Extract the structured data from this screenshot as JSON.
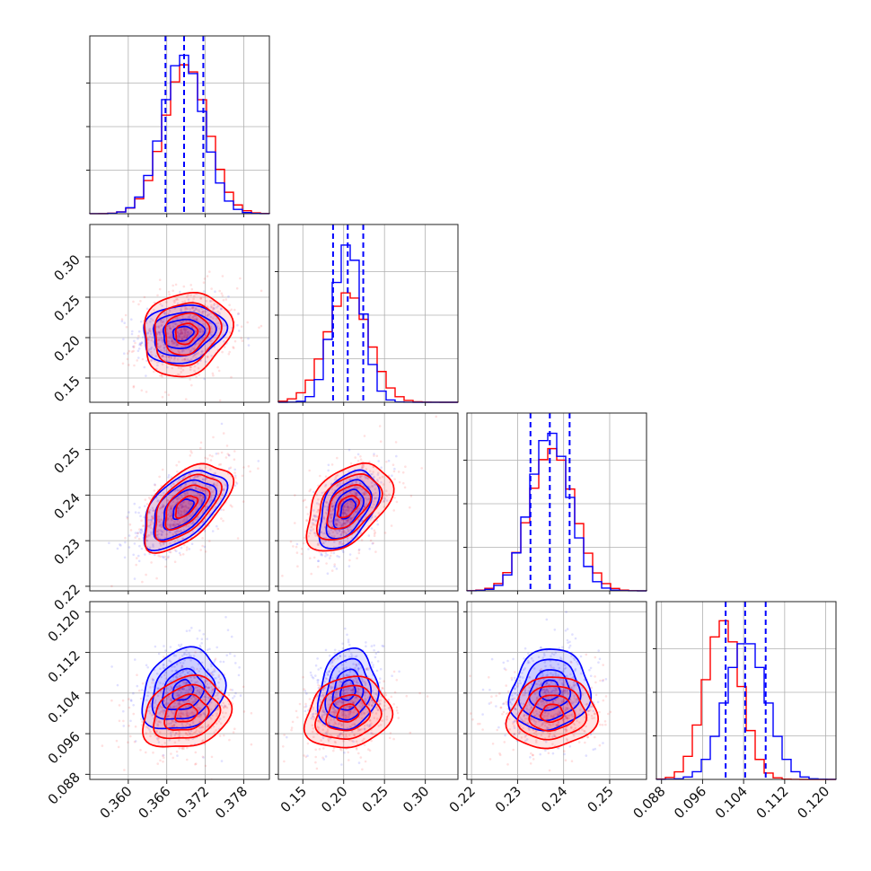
{
  "chart_data": {
    "type": "corner",
    "colors": {
      "series_a": "#0000ff",
      "series_b": "#ff0000"
    },
    "grid": true,
    "parameters": [
      {
        "range": [
          0.354,
          0.382
        ],
        "ticks": [
          "0.360",
          "0.366",
          "0.372",
          "0.378"
        ],
        "tick_values": [
          0.36,
          0.366,
          0.372,
          0.378
        ],
        "mean_a": 0.3685,
        "sd_a": 0.0032,
        "mean_b": 0.369,
        "sd_b": 0.0034,
        "quantiles_a": [
          0.3658,
          0.3687,
          0.3717
        ]
      },
      {
        "range": [
          0.12,
          0.34
        ],
        "ticks": [
          "0.15",
          "0.20",
          "0.25",
          "0.30"
        ],
        "tick_values": [
          0.15,
          0.2,
          0.25,
          0.3
        ],
        "mean_a": 0.205,
        "sd_a": 0.018,
        "mean_b": 0.205,
        "sd_b": 0.026,
        "quantiles_a": [
          0.187,
          0.205,
          0.224
        ]
      },
      {
        "range": [
          0.219,
          0.258
        ],
        "ticks": [
          "0.22",
          "0.23",
          "0.24",
          "0.25"
        ],
        "tick_values": [
          0.22,
          0.23,
          0.24,
          0.25
        ],
        "mean_a": 0.237,
        "sd_a": 0.0043,
        "mean_b": 0.2375,
        "sd_b": 0.0048,
        "quantiles_a": [
          0.2328,
          0.237,
          0.2413
        ]
      },
      {
        "range": [
          0.087,
          0.122
        ],
        "ticks": [
          "0.088",
          "0.096",
          "0.104",
          "0.112",
          "0.120"
        ],
        "tick_values": [
          0.088,
          0.096,
          0.104,
          0.112,
          0.12
        ],
        "mean_a": 0.1045,
        "sd_a": 0.004,
        "mean_b": 0.1,
        "sd_b": 0.0035,
        "quantiles_a": [
          0.1005,
          0.1043,
          0.1083
        ]
      }
    ],
    "correlations": {
      "1-0": 0.15,
      "2-0": 0.55,
      "2-1": 0.45,
      "3-0": 0.2,
      "3-1": 0.15,
      "3-2": 0.1
    },
    "contour_levels_sigma": [
      0.5,
      1.0,
      1.5,
      2.0
    ]
  }
}
